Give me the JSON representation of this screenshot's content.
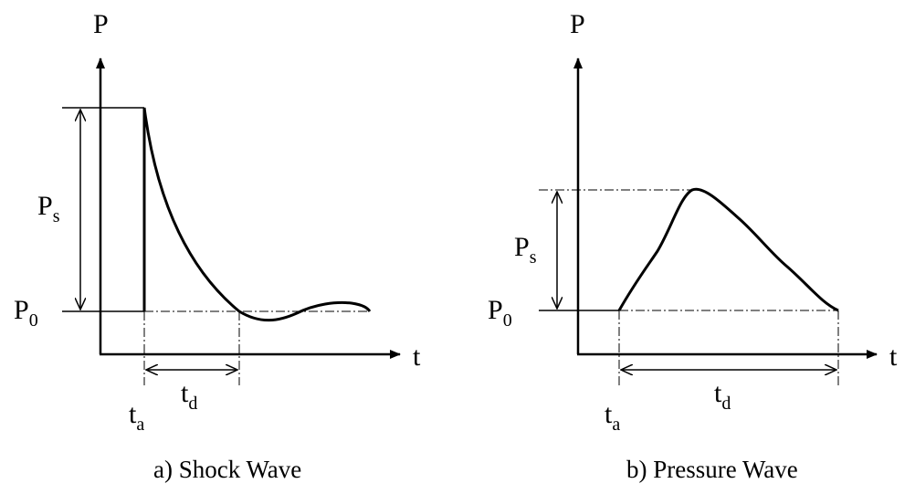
{
  "panels": [
    {
      "caption": "a) Shock Wave",
      "y_axis_label": "P",
      "x_axis_label": "t",
      "peak_label": "P",
      "peak_label_sub": "s",
      "baseline_label": "P",
      "baseline_label_sub": "0",
      "arrival_label": "t",
      "arrival_label_sub": "a",
      "duration_label": "t",
      "duration_label_sub": "d"
    },
    {
      "caption": "b) Pressure Wave",
      "y_axis_label": "P",
      "x_axis_label": "t",
      "peak_label": "P",
      "peak_label_sub": "s",
      "baseline_label": "P",
      "baseline_label_sub": "0",
      "arrival_label": "t",
      "arrival_label_sub": "a",
      "duration_label": "t",
      "duration_label_sub": "d"
    }
  ]
}
